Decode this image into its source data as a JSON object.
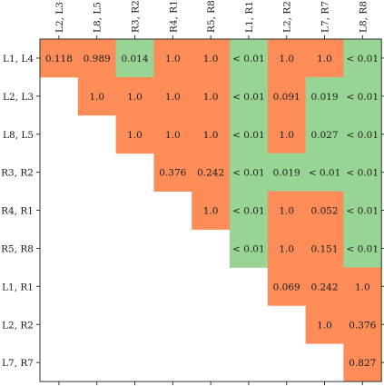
{
  "chart_data": {
    "type": "heatmap",
    "title": "",
    "xlabel": "",
    "ylabel": "",
    "columns": [
      "L2, L3",
      "L8, L5",
      "R3, R2",
      "R4, R1",
      "R5, R8",
      "L1, R1",
      "L2, R2",
      "L7, R7",
      "L8, R8"
    ],
    "rows": [
      "L1, L4",
      "L2, L3",
      "L8, L5",
      "R3, R2",
      "R4, R1",
      "R5, R8",
      "L1, R1",
      "L2, R2",
      "L7, R7"
    ],
    "cells": [
      [
        "0.118",
        "0.989",
        "0.014",
        "1.0",
        "1.0",
        "< 0.01",
        "1.0",
        "1.0",
        "< 0.01"
      ],
      [
        null,
        "1.0",
        "1.0",
        "1.0",
        "1.0",
        "< 0.01",
        "0.091",
        "0.019",
        "< 0.01"
      ],
      [
        null,
        null,
        "1.0",
        "1.0",
        "1.0",
        "< 0.01",
        "1.0",
        "0.027",
        "< 0.01"
      ],
      [
        null,
        null,
        null,
        "0.376",
        "0.242",
        "< 0.01",
        "0.019",
        "< 0.01",
        "< 0.01"
      ],
      [
        null,
        null,
        null,
        null,
        "1.0",
        "< 0.01",
        "1.0",
        "0.052",
        "< 0.01"
      ],
      [
        null,
        null,
        null,
        null,
        null,
        "< 0.01",
        "1.0",
        "0.151",
        "< 0.01"
      ],
      [
        null,
        null,
        null,
        null,
        null,
        null,
        "0.069",
        "0.242",
        "1.0"
      ],
      [
        null,
        null,
        null,
        null,
        null,
        null,
        null,
        "1.0",
        "0.376"
      ],
      [
        null,
        null,
        null,
        null,
        null,
        null,
        null,
        null,
        "0.827"
      ]
    ],
    "significant": [
      [
        false,
        false,
        true,
        false,
        false,
        true,
        false,
        false,
        true
      ],
      [
        false,
        false,
        false,
        false,
        false,
        true,
        false,
        true,
        true
      ],
      [
        false,
        false,
        false,
        false,
        false,
        true,
        false,
        true,
        true
      ],
      [
        false,
        false,
        false,
        false,
        false,
        true,
        true,
        true,
        true
      ],
      [
        false,
        false,
        false,
        false,
        false,
        true,
        false,
        false,
        true
      ],
      [
        false,
        false,
        false,
        false,
        false,
        true,
        false,
        false,
        true
      ],
      [
        false,
        false,
        false,
        false,
        false,
        false,
        false,
        false,
        false
      ],
      [
        false,
        false,
        false,
        false,
        false,
        false,
        false,
        false,
        false
      ],
      [
        false,
        false,
        false,
        false,
        false,
        false,
        false,
        false,
        false
      ]
    ],
    "colors": {
      "significant": "#98d594",
      "not_significant": "#fc8d59",
      "axis": "#333333",
      "background": "#ffffff"
    }
  }
}
